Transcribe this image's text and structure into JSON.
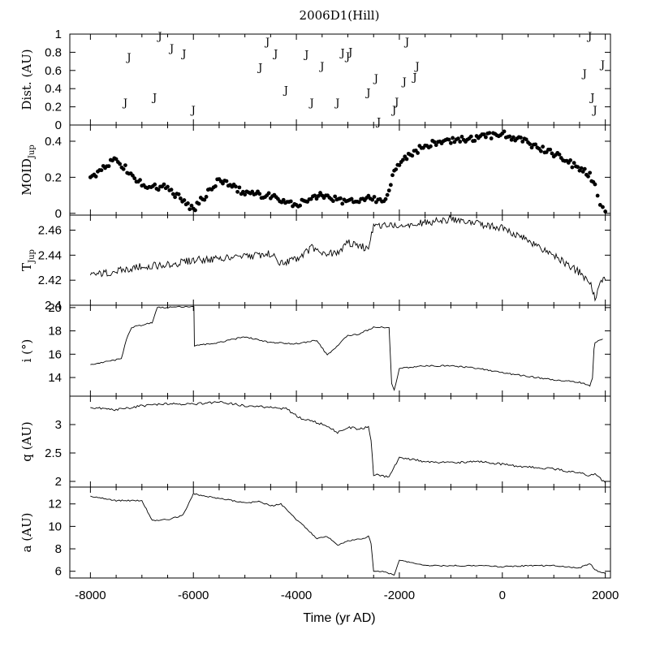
{
  "figure": {
    "title": "2006D1(Hill)",
    "xlabel": "Time (yr AD)",
    "x_ticks": [
      "-8000",
      "-6000",
      "-4000",
      "-2000",
      "0",
      "2000"
    ]
  },
  "chart_data": [
    {
      "type": "scatter",
      "panel": "dist",
      "title": "2006D1(Hill)",
      "ylabel": "Dist. (AU)",
      "marker": "J",
      "xlim": [
        -8400,
        2100
      ],
      "ylim": [
        0,
        1
      ],
      "y_ticks": [
        "0",
        "0.2",
        "0.4",
        "0.6",
        "0.8",
        "1"
      ],
      "points": [
        {
          "x": -7250,
          "y": 0.75
        },
        {
          "x": -7320,
          "y": 0.25
        },
        {
          "x": -6750,
          "y": 0.31
        },
        {
          "x": -6650,
          "y": 0.98
        },
        {
          "x": -6420,
          "y": 0.85
        },
        {
          "x": -6180,
          "y": 0.79
        },
        {
          "x": -6000,
          "y": 0.17
        },
        {
          "x": -4700,
          "y": 0.64
        },
        {
          "x": -4560,
          "y": 0.92
        },
        {
          "x": -4400,
          "y": 0.79
        },
        {
          "x": -4200,
          "y": 0.39
        },
        {
          "x": -3800,
          "y": 0.78
        },
        {
          "x": -3700,
          "y": 0.25
        },
        {
          "x": -3500,
          "y": 0.65
        },
        {
          "x": -3200,
          "y": 0.25
        },
        {
          "x": -3100,
          "y": 0.8
        },
        {
          "x": -3000,
          "y": 0.76
        },
        {
          "x": -2950,
          "y": 0.81
        },
        {
          "x": -2600,
          "y": 0.36
        },
        {
          "x": -2450,
          "y": 0.52
        },
        {
          "x": -2400,
          "y": 0.04
        },
        {
          "x": -2100,
          "y": 0.17
        },
        {
          "x": -2050,
          "y": 0.26
        },
        {
          "x": -1900,
          "y": 0.48
        },
        {
          "x": -1850,
          "y": 0.92
        },
        {
          "x": -1700,
          "y": 0.53
        },
        {
          "x": -1650,
          "y": 0.65
        },
        {
          "x": 1600,
          "y": 0.57
        },
        {
          "x": 1700,
          "y": 0.98
        },
        {
          "x": 1750,
          "y": 0.31
        },
        {
          "x": 1800,
          "y": 0.17
        },
        {
          "x": 1950,
          "y": 0.67
        }
      ]
    },
    {
      "type": "scatter",
      "panel": "moid",
      "ylabel": "MOID",
      "ylabel_sub": "Jup",
      "xlim": [
        -8400,
        2100
      ],
      "ylim": [
        -0.01,
        0.49
      ],
      "y_ticks": [
        "0",
        "0.2",
        "0.4"
      ],
      "x": [
        -8000,
        -7500,
        -7000,
        -6500,
        -6000,
        -5500,
        -5000,
        -4500,
        -4000,
        -3500,
        -3000,
        -2600,
        -2300,
        -2200,
        -2100,
        -2000,
        -1500,
        -1000,
        -500,
        0,
        500,
        1000,
        1500,
        1700,
        1800,
        1850,
        1900,
        1950,
        2000
      ],
      "y": [
        0.2,
        0.3,
        0.16,
        0.14,
        0.02,
        0.19,
        0.11,
        0.1,
        0.05,
        0.1,
        0.06,
        0.08,
        0.07,
        0.12,
        0.25,
        0.28,
        0.38,
        0.4,
        0.42,
        0.44,
        0.39,
        0.33,
        0.25,
        0.21,
        0.15,
        0.1,
        0.06,
        0.03,
        0.01
      ]
    },
    {
      "type": "line",
      "panel": "tjup",
      "ylabel": "T",
      "ylabel_sub": "Jup",
      "xlim": [
        -8400,
        2100
      ],
      "ylim": [
        2.4,
        2.472
      ],
      "y_ticks": [
        "2.4",
        "2.42",
        "2.44",
        "2.46"
      ],
      "x": [
        -8000,
        -7500,
        -7000,
        -6500,
        -6000,
        -5500,
        -5000,
        -4500,
        -4300,
        -4000,
        -3700,
        -3500,
        -3200,
        -3000,
        -2800,
        -2600,
        -2500,
        -2200,
        -2000,
        -1500,
        -1000,
        -500,
        0,
        500,
        1000,
        1500,
        1700,
        1800,
        1850,
        1900,
        2000
      ],
      "y": [
        2.424,
        2.427,
        2.431,
        2.432,
        2.436,
        2.437,
        2.439,
        2.441,
        2.434,
        2.437,
        2.446,
        2.44,
        2.442,
        2.45,
        2.447,
        2.446,
        2.463,
        2.464,
        2.462,
        2.466,
        2.469,
        2.465,
        2.462,
        2.452,
        2.44,
        2.426,
        2.418,
        2.406,
        2.412,
        2.418,
        2.42
      ]
    },
    {
      "type": "line",
      "panel": "incl",
      "ylabel": "i (°)",
      "xlim": [
        -8400,
        2100
      ],
      "ylim": [
        12.4,
        20.2
      ],
      "y_ticks": [
        "14",
        "16",
        "18",
        "20"
      ],
      "x": [
        -8000,
        -7400,
        -7300,
        -7200,
        -6800,
        -6700,
        -6600,
        -6100,
        -5990,
        -5980,
        -5500,
        -5000,
        -4500,
        -4000,
        -3600,
        -3400,
        -3000,
        -2800,
        -2500,
        -2200,
        -2150,
        -2100,
        -2000,
        -1500,
        -1000,
        -500,
        0,
        500,
        1000,
        1500,
        1700,
        1750,
        1780,
        1800,
        1950
      ],
      "y": [
        15.1,
        15.6,
        17.3,
        18.3,
        18.7,
        20.0,
        20.0,
        20.1,
        20.1,
        16.7,
        17.0,
        17.5,
        17.0,
        16.9,
        17.2,
        15.9,
        17.6,
        17.7,
        18.3,
        18.3,
        13.5,
        12.9,
        14.8,
        15.0,
        15.0,
        14.8,
        14.4,
        14.1,
        13.8,
        13.6,
        13.3,
        14.0,
        16.5,
        17.0,
        17.3
      ]
    },
    {
      "type": "line",
      "panel": "q",
      "ylabel": "q (AU)",
      "xlim": [
        -8400,
        2100
      ],
      "ylim": [
        1.9,
        3.5
      ],
      "y_ticks": [
        "2",
        "2.5",
        "3"
      ],
      "x": [
        -8000,
        -7500,
        -7000,
        -6500,
        -6000,
        -5500,
        -5000,
        -4500,
        -4200,
        -3900,
        -3700,
        -3400,
        -3200,
        -3000,
        -2800,
        -2600,
        -2550,
        -2500,
        -2400,
        -2200,
        -2000,
        -1500,
        -1000,
        -500,
        0,
        500,
        1000,
        1500,
        1700,
        1800,
        1900,
        2000
      ],
      "y": [
        3.3,
        3.26,
        3.33,
        3.37,
        3.36,
        3.4,
        3.33,
        3.3,
        3.28,
        3.1,
        3.07,
        2.97,
        2.86,
        2.96,
        2.92,
        2.96,
        2.74,
        2.12,
        2.11,
        2.08,
        2.42,
        2.35,
        2.33,
        2.35,
        2.3,
        2.25,
        2.22,
        2.15,
        2.1,
        2.15,
        2.05,
        1.98
      ]
    },
    {
      "type": "line",
      "panel": "a",
      "ylabel": "a (AU)",
      "xlim": [
        -8400,
        2100
      ],
      "ylim": [
        5.4,
        13.5
      ],
      "y_ticks": [
        "6",
        "8",
        "10",
        "12"
      ],
      "x": [
        -8000,
        -7500,
        -7000,
        -6800,
        -6500,
        -6200,
        -6000,
        -5800,
        -5500,
        -5000,
        -4700,
        -4500,
        -4300,
        -4000,
        -3800,
        -3600,
        -3400,
        -3200,
        -3000,
        -2700,
        -2600,
        -2550,
        -2500,
        -2300,
        -2200,
        -2100,
        -2000,
        -1500,
        -1000,
        -500,
        0,
        500,
        1000,
        1500,
        1700,
        1800,
        2000
      ],
      "y": [
        12.7,
        12.3,
        12.3,
        10.5,
        10.6,
        11.0,
        12.9,
        12.7,
        12.5,
        12.1,
        12.2,
        11.8,
        12.0,
        10.6,
        9.8,
        8.9,
        9.1,
        8.3,
        8.7,
        8.9,
        9.1,
        8.5,
        6.0,
        6.0,
        5.8,
        5.7,
        7.0,
        6.5,
        6.5,
        6.5,
        6.4,
        6.5,
        6.5,
        6.3,
        6.7,
        6.1,
        5.8
      ]
    }
  ]
}
